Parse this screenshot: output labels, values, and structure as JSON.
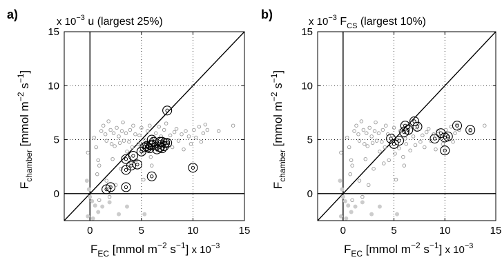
{
  "chart_data": [
    {
      "type": "scatter",
      "panel_label": "a)",
      "title_main": "u",
      "title_sub": "",
      "title_rest": "(largest 25%)",
      "scale_label_top": "x 10",
      "scale_exp_top": "−3",
      "scale_label_bottom": "x 10",
      "scale_exp_bottom": "−3",
      "ylabel_base": "F",
      "ylabel_sub": "chamber",
      "ylabel_units": "[mmol m",
      "ylabel_units_exp1": "−2",
      "ylabel_units_mid": " s",
      "ylabel_units_exp2": "−1",
      "ylabel_units_end": "]",
      "xlabel_base": "F",
      "xlabel_sub": "EC",
      "xlabel_units": "[mmol m",
      "xlabel_units_exp1": "−2",
      "xlabel_units_mid": " s",
      "xlabel_units_exp2": "−1",
      "xlabel_units_end": "]",
      "xlim": [
        -2.5,
        15
      ],
      "ylim": [
        -2.5,
        15
      ],
      "xticks": [
        0,
        5,
        10,
        15
      ],
      "yticks": [
        0,
        5,
        10,
        15
      ],
      "xtick_labels": [
        "0",
        "5",
        "10",
        "15"
      ],
      "ytick_labels": [
        "0",
        "5",
        "10",
        "15"
      ],
      "grid": true,
      "one_to_one_line": true,
      "zero_lines": true,
      "series": [
        {
          "role": "all points",
          "color": "#999999",
          "points": [
            [
              -0.2,
              3.8
            ],
            [
              0.4,
              5.2
            ],
            [
              0.6,
              4.3
            ],
            [
              0.8,
              3.1
            ],
            [
              0.9,
              2.6
            ],
            [
              0.7,
              1.8
            ],
            [
              1.1,
              5.8
            ],
            [
              1.3,
              6.3
            ],
            [
              1.5,
              5.5
            ],
            [
              1.6,
              4.9
            ],
            [
              1.8,
              6.7
            ],
            [
              2.0,
              5.9
            ],
            [
              2.1,
              4.6
            ],
            [
              2.3,
              5.6
            ],
            [
              2.4,
              4.4
            ],
            [
              2.6,
              6.1
            ],
            [
              2.8,
              5.3
            ],
            [
              2.9,
              4.7
            ],
            [
              3.1,
              5.8
            ],
            [
              3.2,
              6.6
            ],
            [
              3.3,
              4.9
            ],
            [
              3.5,
              5.6
            ],
            [
              3.6,
              3.9
            ],
            [
              3.8,
              4.8
            ],
            [
              3.9,
              5.9
            ],
            [
              4.1,
              4.3
            ],
            [
              4.2,
              6.3
            ],
            [
              4.4,
              5.5
            ],
            [
              4.5,
              3.1
            ],
            [
              4.7,
              4.6
            ],
            [
              4.8,
              5.4
            ],
            [
              5.0,
              6.1
            ],
            [
              5.1,
              3.7
            ],
            [
              5.3,
              5.0
            ],
            [
              5.5,
              4.2
            ],
            [
              5.6,
              5.8
            ],
            [
              5.8,
              6.3
            ],
            [
              5.9,
              3.4
            ],
            [
              6.1,
              5.1
            ],
            [
              6.2,
              4.6
            ],
            [
              6.4,
              5.6
            ],
            [
              6.6,
              4.0
            ],
            [
              6.7,
              6.2
            ],
            [
              6.9,
              5.3
            ],
            [
              7.1,
              4.5
            ],
            [
              7.2,
              5.9
            ],
            [
              7.4,
              6.5
            ],
            [
              7.6,
              4.8
            ],
            [
              7.8,
              5.4
            ],
            [
              8.0,
              4.3
            ],
            [
              8.2,
              5.7
            ],
            [
              8.4,
              6.0
            ],
            [
              8.6,
              4.9
            ],
            [
              8.9,
              5.5
            ],
            [
              9.1,
              4.1
            ],
            [
              9.3,
              5.8
            ],
            [
              9.6,
              5.3
            ],
            [
              9.8,
              4.6
            ],
            [
              10.1,
              5.9
            ],
            [
              10.3,
              5.2
            ],
            [
              10.6,
              6.2
            ],
            [
              10.8,
              4.8
            ],
            [
              11.0,
              5.6
            ],
            [
              11.2,
              6.4
            ],
            [
              11.4,
              5.9
            ],
            [
              12.5,
              5.8
            ],
            [
              13.9,
              6.3
            ],
            [
              2.2,
              3.2
            ],
            [
              3.0,
              2.3
            ],
            [
              4.0,
              2.8
            ],
            [
              6.0,
              2.6
            ],
            [
              5.2,
              1.3
            ],
            [
              1.6,
              1.2
            ],
            [
              2.5,
              0.8
            ],
            [
              0.9,
              -0.6
            ],
            [
              1.9,
              -0.3
            ]
          ]
        },
        {
          "role": "filled low points",
          "color": "#cccccc",
          "points": [
            [
              -0.3,
              1.2
            ],
            [
              -0.1,
              0.4
            ],
            [
              0.0,
              -0.3
            ],
            [
              0.2,
              -0.7
            ],
            [
              0.5,
              -1.1
            ],
            [
              0.8,
              -1.7
            ],
            [
              1.2,
              -1.2
            ],
            [
              1.9,
              -0.8
            ],
            [
              2.8,
              -1.9
            ],
            [
              3.6,
              -1.2
            ],
            [
              5.3,
              -1.9
            ],
            [
              -0.2,
              -2.1
            ],
            [
              0.3,
              -2.3
            ]
          ]
        },
        {
          "role": "selected (largest 25%)",
          "color": "#000000",
          "points": [
            [
              1.6,
              0.4
            ],
            [
              2.0,
              0.6
            ],
            [
              3.5,
              0.6
            ],
            [
              3.5,
              2.2
            ],
            [
              3.5,
              3.2
            ],
            [
              4.0,
              2.6
            ],
            [
              4.6,
              2.7
            ],
            [
              4.2,
              3.5
            ],
            [
              5.0,
              3.9
            ],
            [
              5.3,
              4.3
            ],
            [
              5.6,
              4.3
            ],
            [
              5.8,
              4.2
            ],
            [
              5.9,
              4.5
            ],
            [
              6.1,
              4.5
            ],
            [
              6.0,
              5.0
            ],
            [
              6.5,
              4.1
            ],
            [
              6.8,
              4.3
            ],
            [
              6.8,
              4.8
            ],
            [
              7.0,
              4.2
            ],
            [
              7.2,
              4.4
            ],
            [
              7.3,
              4.7
            ],
            [
              7.5,
              4.7
            ],
            [
              7.0,
              4.8
            ],
            [
              7.5,
              7.7
            ],
            [
              6.0,
              1.6
            ],
            [
              10.0,
              2.4
            ],
            [
              6.2,
              4.8
            ],
            [
              5.5,
              4.4
            ]
          ]
        }
      ]
    },
    {
      "type": "scatter",
      "panel_label": "b)",
      "title_main": "F",
      "title_sub": "CS",
      "title_rest": "(largest 10%)",
      "scale_label_top": "x 10",
      "scale_exp_top": "−3",
      "scale_label_bottom": "x 10",
      "scale_exp_bottom": "−3",
      "ylabel_base": "F",
      "ylabel_sub": "chamber",
      "ylabel_units": "[mmol m",
      "ylabel_units_exp1": "−2",
      "ylabel_units_mid": " s",
      "ylabel_units_exp2": "−1",
      "ylabel_units_end": "]",
      "xlabel_base": "F",
      "xlabel_sub": "EC",
      "xlabel_units": "[mmol m",
      "xlabel_units_exp1": "−2",
      "xlabel_units_mid": " s",
      "xlabel_units_exp2": "−1",
      "xlabel_units_end": "]",
      "xlim": [
        -2.5,
        15
      ],
      "ylim": [
        -2.5,
        15
      ],
      "xticks": [
        0,
        5,
        10,
        15
      ],
      "yticks": [
        0,
        5,
        10,
        15
      ],
      "xtick_labels": [
        "0",
        "5",
        "10",
        "15"
      ],
      "ytick_labels": [
        "0",
        "5",
        "10",
        "15"
      ],
      "grid": true,
      "one_to_one_line": true,
      "zero_lines": true,
      "series": [
        {
          "role": "all points",
          "color": "#999999",
          "points": [
            [
              -0.2,
              3.8
            ],
            [
              0.4,
              5.2
            ],
            [
              0.6,
              4.3
            ],
            [
              0.8,
              3.1
            ],
            [
              0.9,
              2.6
            ],
            [
              0.7,
              1.8
            ],
            [
              1.1,
              5.8
            ],
            [
              1.3,
              6.3
            ],
            [
              1.5,
              5.5
            ],
            [
              1.6,
              4.9
            ],
            [
              1.8,
              6.7
            ],
            [
              2.0,
              5.9
            ],
            [
              2.1,
              4.6
            ],
            [
              2.3,
              5.6
            ],
            [
              2.4,
              4.4
            ],
            [
              2.6,
              6.1
            ],
            [
              2.8,
              5.3
            ],
            [
              2.9,
              4.7
            ],
            [
              3.1,
              5.8
            ],
            [
              3.2,
              6.6
            ],
            [
              3.3,
              4.9
            ],
            [
              3.5,
              5.6
            ],
            [
              3.6,
              3.9
            ],
            [
              3.8,
              4.8
            ],
            [
              3.9,
              5.9
            ],
            [
              4.1,
              4.3
            ],
            [
              4.2,
              6.3
            ],
            [
              4.4,
              5.5
            ],
            [
              4.5,
              3.1
            ],
            [
              4.7,
              4.6
            ],
            [
              4.8,
              5.4
            ],
            [
              5.0,
              6.1
            ],
            [
              5.1,
              3.7
            ],
            [
              5.3,
              5.0
            ],
            [
              5.5,
              4.2
            ],
            [
              5.6,
              5.8
            ],
            [
              5.8,
              6.3
            ],
            [
              5.9,
              3.4
            ],
            [
              6.1,
              5.1
            ],
            [
              6.2,
              4.6
            ],
            [
              6.4,
              5.6
            ],
            [
              6.6,
              4.0
            ],
            [
              6.7,
              6.2
            ],
            [
              6.9,
              5.3
            ],
            [
              7.1,
              4.5
            ],
            [
              7.2,
              5.9
            ],
            [
              7.4,
              6.5
            ],
            [
              7.6,
              4.8
            ],
            [
              7.8,
              5.4
            ],
            [
              8.0,
              4.3
            ],
            [
              8.2,
              5.7
            ],
            [
              8.4,
              6.0
            ],
            [
              8.6,
              4.9
            ],
            [
              8.9,
              5.5
            ],
            [
              9.1,
              4.1
            ],
            [
              9.3,
              5.8
            ],
            [
              9.6,
              5.3
            ],
            [
              9.8,
              4.6
            ],
            [
              10.1,
              5.9
            ],
            [
              10.3,
              5.2
            ],
            [
              10.6,
              6.2
            ],
            [
              10.8,
              4.8
            ],
            [
              11.0,
              5.6
            ],
            [
              11.2,
              6.4
            ],
            [
              11.4,
              5.9
            ],
            [
              12.5,
              5.8
            ],
            [
              13.9,
              6.3
            ],
            [
              2.2,
              3.2
            ],
            [
              3.0,
              2.3
            ],
            [
              4.0,
              2.8
            ],
            [
              6.0,
              2.6
            ],
            [
              5.2,
              1.3
            ],
            [
              1.6,
              1.2
            ],
            [
              2.5,
              0.8
            ],
            [
              0.9,
              -0.6
            ],
            [
              1.9,
              -0.3
            ]
          ]
        },
        {
          "role": "filled low points",
          "color": "#cccccc",
          "points": [
            [
              -0.3,
              1.2
            ],
            [
              -0.1,
              0.4
            ],
            [
              0.0,
              -0.3
            ],
            [
              0.2,
              -0.7
            ],
            [
              0.5,
              -1.1
            ],
            [
              0.8,
              -1.7
            ],
            [
              1.2,
              -1.2
            ],
            [
              1.9,
              -0.8
            ],
            [
              2.8,
              -1.9
            ],
            [
              3.6,
              -1.2
            ],
            [
              5.3,
              -1.9
            ],
            [
              -0.2,
              -2.1
            ],
            [
              0.3,
              -2.3
            ]
          ]
        },
        {
          "role": "selected (largest 10%)",
          "color": "#000000",
          "points": [
            [
              4.7,
              5.1
            ],
            [
              5.0,
              4.6
            ],
            [
              5.5,
              4.9
            ],
            [
              6.0,
              5.7
            ],
            [
              6.1,
              6.3
            ],
            [
              6.4,
              5.9
            ],
            [
              7.0,
              6.7
            ],
            [
              7.3,
              6.2
            ],
            [
              9.0,
              5.1
            ],
            [
              9.6,
              5.6
            ],
            [
              10.0,
              5.2
            ],
            [
              10.3,
              5.3
            ],
            [
              10.0,
              4.0
            ],
            [
              11.2,
              6.3
            ],
            [
              12.5,
              5.9
            ]
          ]
        }
      ]
    }
  ]
}
